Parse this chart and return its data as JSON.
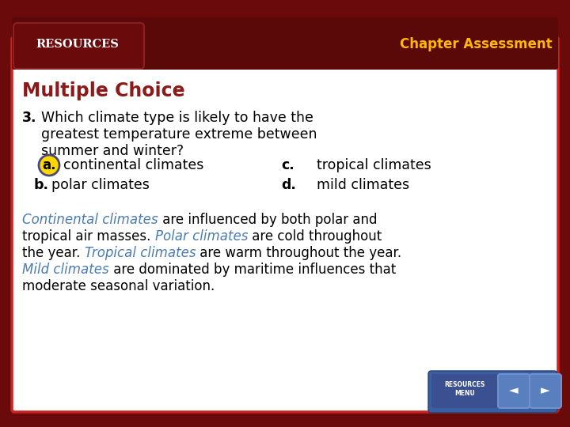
{
  "bg_color": "#6B0A0A",
  "bg_outer": "#4A3030",
  "panel_color": "#FFFFFF",
  "panel_border": "#CC2222",
  "header_bg": "#5A0808",
  "header_text": "RESOURCES",
  "chapter_text": "Chapter Assessment",
  "chapter_color": "#FFB800",
  "header_text_color": "#FFFFFF",
  "title": "Multiple Choice",
  "title_color": "#8B1A1A",
  "question_color": "#000000",
  "answer_label_color": "#000000",
  "answer_a_circle_fill": "#FFD700",
  "answer_a_circle_edge": "#4A4A7A",
  "blue_color": "#4A7BAF",
  "footer_bg": "#3A5FA0",
  "footer_btn": "#5A7FBF"
}
